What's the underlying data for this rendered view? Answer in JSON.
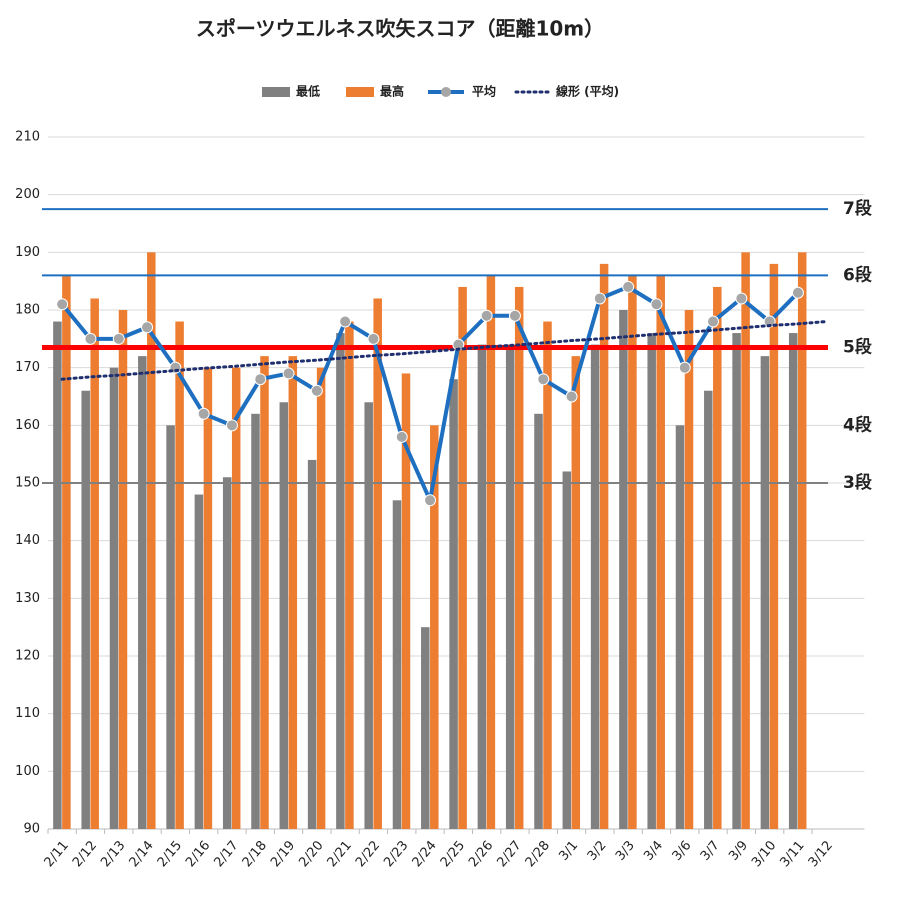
{
  "chart_data": {
    "type": "bar",
    "title": "スポーツウエルネス吹矢スコア（距離10m）",
    "categories": [
      "2/11",
      "2/12",
      "2/13",
      "2/14",
      "2/15",
      "2/16",
      "2/17",
      "2/18",
      "2/19",
      "2/20",
      "2/21",
      "2/22",
      "2/23",
      "2/24",
      "2/25",
      "2/26",
      "2/27",
      "2/28",
      "3/1",
      "3/2",
      "3/3",
      "3/4",
      "3/6",
      "3/7",
      "3/9",
      "3/10",
      "3/11",
      "3/12"
    ],
    "series": [
      {
        "name": "最低",
        "type": "bar",
        "color": "#808080",
        "values": [
          178,
          166,
          170,
          172,
          160,
          148,
          151,
          162,
          164,
          154,
          176,
          164,
          147,
          125,
          168,
          174,
          174,
          162,
          152,
          174,
          180,
          176,
          160,
          166,
          176,
          172,
          176,
          null
        ]
      },
      {
        "name": "最高",
        "type": "bar",
        "color": "#ed7d31",
        "values": [
          186,
          182,
          180,
          190,
          178,
          170,
          170,
          172,
          172,
          170,
          178,
          182,
          169,
          160,
          184,
          186,
          184,
          178,
          172,
          188,
          186,
          186,
          180,
          184,
          190,
          188,
          190,
          null
        ]
      },
      {
        "name": "平均",
        "type": "line",
        "color": "#1f6fc1",
        "values": [
          181,
          175,
          175,
          177,
          170,
          162,
          160,
          168,
          169,
          166,
          178,
          175,
          158,
          147,
          174,
          179,
          179,
          168,
          165,
          182,
          184,
          181,
          170,
          178,
          182,
          178,
          183,
          null
        ]
      },
      {
        "name": "線形 (平均)",
        "type": "trend",
        "color": "#1f2f6f",
        "values": [
          168.0,
          168.4,
          168.7,
          169.1,
          169.5,
          169.9,
          170.2,
          170.6,
          171.0,
          171.3,
          171.7,
          172.1,
          172.4,
          172.8,
          173.2,
          173.6,
          173.9,
          174.3,
          174.7,
          175.0,
          175.4,
          175.8,
          176.1,
          176.5,
          176.9,
          177.3,
          177.6,
          178.0
        ]
      }
    ],
    "ylim": [
      90,
      210
    ],
    "yticks": [
      90,
      100,
      110,
      120,
      130,
      140,
      150,
      160,
      170,
      180,
      190,
      200,
      210
    ],
    "grid": true,
    "legend": "top",
    "reference_lines": [
      {
        "label": "7段",
        "value": 197.5,
        "color": "#1f6fc1",
        "width": 2,
        "label_color": "#111"
      },
      {
        "label": "6段",
        "value": 186,
        "color": "#1f6fc1",
        "width": 2,
        "label_color": "#111"
      },
      {
        "label": "5段",
        "value": 173.5,
        "color": "#ff0000",
        "width": 5,
        "label_color": "#1f6fc1"
      },
      {
        "label": "4段",
        "value": 161,
        "color": null,
        "width": 0,
        "label_color": "#111"
      },
      {
        "label": "3段",
        "value": 150,
        "color": "#808080",
        "width": 2,
        "label_color": "#111"
      }
    ]
  }
}
